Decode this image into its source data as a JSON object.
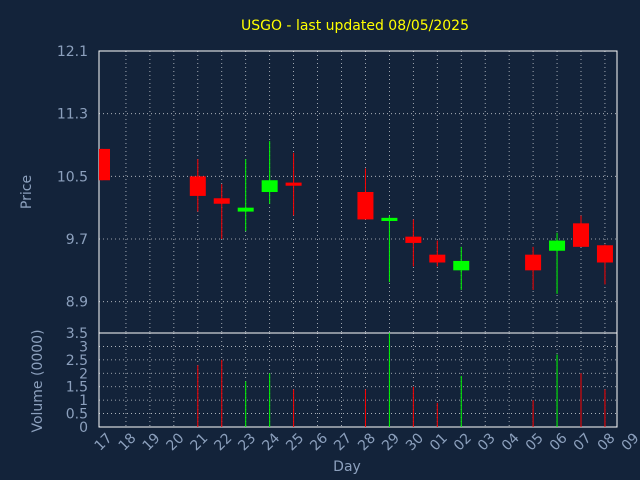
{
  "chart_data": {
    "type": "candlestick",
    "title": "USGO - last updated 08/05/2025",
    "xlabel": "Day",
    "price_panel": {
      "ylabel": "Price",
      "ylim": [
        8.5,
        12.1
      ],
      "yticks": [
        "12.1",
        "11.3",
        "10.5",
        "9.7",
        "8.9"
      ],
      "ytick_values": [
        12.1,
        11.3,
        10.5,
        9.7,
        8.9
      ],
      "grid": true
    },
    "volume_panel": {
      "ylabel": "Volume (0000)",
      "ylim": [
        0,
        3.5
      ],
      "yticks": [
        "3.5",
        "3",
        "2.5",
        "2",
        "1.5",
        "1",
        "0.5",
        "0"
      ],
      "ytick_values": [
        3.5,
        3,
        2.5,
        2,
        1.5,
        1,
        0.5,
        0
      ],
      "grid": true
    },
    "x_ticks": [
      "17",
      "18",
      "19",
      "20",
      "21",
      "22",
      "23",
      "24",
      "25",
      "26",
      "27",
      "28",
      "29",
      "30",
      "01",
      "02",
      "03",
      "04",
      "05",
      "06",
      "07",
      "08",
      "09"
    ],
    "candles": [
      {
        "day": "17",
        "open": 10.85,
        "high": 10.85,
        "low": 10.45,
        "close": 10.45,
        "volume": 0
      },
      {
        "day": "21",
        "open": 10.5,
        "high": 10.72,
        "low": 10.05,
        "close": 10.25,
        "volume": 2.3
      },
      {
        "day": "22",
        "open": 10.22,
        "high": 10.4,
        "low": 9.7,
        "close": 10.15,
        "volume": 2.5
      },
      {
        "day": "23",
        "open": 10.05,
        "high": 10.72,
        "low": 9.8,
        "close": 10.1,
        "volume": 1.7
      },
      {
        "day": "24",
        "open": 10.3,
        "high": 10.95,
        "low": 10.15,
        "close": 10.45,
        "volume": 2.0
      },
      {
        "day": "25",
        "open": 10.42,
        "high": 10.8,
        "low": 10.0,
        "close": 10.38,
        "volume": 1.4
      },
      {
        "day": "28",
        "open": 10.3,
        "high": 10.6,
        "low": 9.95,
        "close": 9.95,
        "volume": 1.4
      },
      {
        "day": "29",
        "open": 9.93,
        "high": 10.0,
        "low": 9.15,
        "close": 9.97,
        "volume": 3.5
      },
      {
        "day": "30",
        "open": 9.73,
        "high": 9.95,
        "low": 9.35,
        "close": 9.65,
        "volume": 1.5
      },
      {
        "day": "01",
        "open": 9.5,
        "high": 9.68,
        "low": 9.35,
        "close": 9.4,
        "volume": 0.9
      },
      {
        "day": "02",
        "open": 9.3,
        "high": 9.6,
        "low": 9.05,
        "close": 9.42,
        "volume": 1.9
      },
      {
        "day": "05",
        "open": 9.5,
        "high": 9.6,
        "low": 9.05,
        "close": 9.3,
        "volume": 1.0
      },
      {
        "day": "06",
        "open": 9.55,
        "high": 9.78,
        "low": 9.0,
        "close": 9.68,
        "volume": 2.7
      },
      {
        "day": "07",
        "open": 9.9,
        "high": 10.0,
        "low": 9.6,
        "close": 9.6,
        "volume": 2.0
      },
      {
        "day": "08",
        "open": 9.62,
        "high": 9.63,
        "low": 9.12,
        "close": 9.4,
        "volume": 1.4
      }
    ],
    "colors": {
      "up": "#00ff00",
      "down": "#ff0000",
      "title": "#ffff00",
      "axis_text": "#8ca0bd",
      "background": "#13233a"
    }
  }
}
